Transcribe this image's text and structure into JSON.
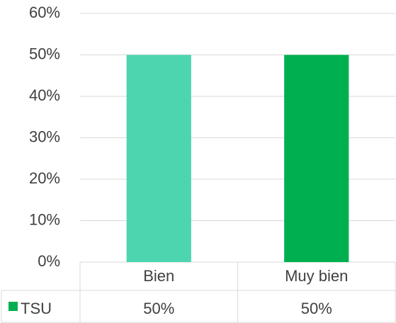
{
  "chart_data": {
    "type": "bar",
    "categories": [
      "Bien",
      "Muy bien"
    ],
    "series": [
      {
        "name": "TSU",
        "color": "#00b050",
        "point_colors": [
          "#4dd5b0",
          "#00b050"
        ],
        "values": [
          50,
          50
        ],
        "value_labels": [
          "50%",
          "50%"
        ]
      }
    ],
    "ylim": [
      0,
      60
    ],
    "yticks": [
      {
        "value": 0,
        "label": "0%"
      },
      {
        "value": 10,
        "label": "10%"
      },
      {
        "value": 20,
        "label": "20%"
      },
      {
        "value": 30,
        "label": "30%"
      },
      {
        "value": 40,
        "label": "40%"
      },
      {
        "value": 50,
        "label": "50%"
      },
      {
        "value": 60,
        "label": "60%"
      }
    ],
    "grid": true,
    "data_table": true
  }
}
